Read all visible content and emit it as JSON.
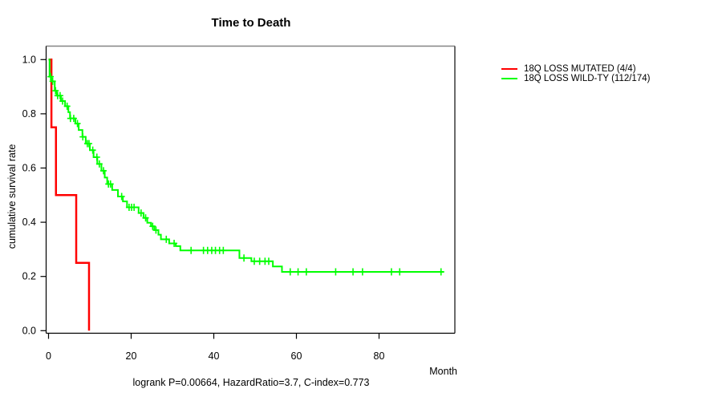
{
  "chart_data": {
    "type": "line",
    "subtype": "kaplan-meier-step",
    "title": "Time to Death",
    "xlabel": "Month",
    "ylabel": "cumulative survival rate",
    "annotation": "logrank P=0.00664, HazardRatio=3.7, C-index=0.773",
    "xlim": [
      0,
      98
    ],
    "ylim": [
      0.0,
      1.0
    ],
    "x_ticks": [
      {
        "value": 0,
        "label": "0"
      },
      {
        "value": 20,
        "label": "20"
      },
      {
        "value": 40,
        "label": "40"
      },
      {
        "value": 60,
        "label": "60"
      },
      {
        "value": 80,
        "label": "80"
      }
    ],
    "y_ticks": [
      {
        "value": 1.0,
        "label": "1.0"
      },
      {
        "value": 0.8,
        "label": "0.8"
      },
      {
        "value": 0.6,
        "label": "0.6"
      },
      {
        "value": 0.4,
        "label": "0.4"
      },
      {
        "value": 0.2,
        "label": "0.2"
      },
      {
        "value": 0.0,
        "label": "0.0"
      }
    ],
    "grid": false,
    "legend_position": "right-outside",
    "series": [
      {
        "name": "18Q LOSS MUTATED (4/4)",
        "color": "#ff0000",
        "line_width": 2.5,
        "end_month": 9.8,
        "steps": [
          [
            0,
            1.0
          ],
          [
            0.7,
            0.75
          ],
          [
            1.8,
            0.5
          ],
          [
            6.7,
            0.25
          ],
          [
            9.8,
            0.0
          ]
        ],
        "censors": []
      },
      {
        "name": "18Q LOSS WILD-TY (112/174)",
        "color": "#00ff00",
        "line_width": 2,
        "end_month": 95.7,
        "steps": [
          [
            0,
            1.0
          ],
          [
            0.25,
            0.937
          ],
          [
            0.8,
            0.92
          ],
          [
            1.5,
            0.885
          ],
          [
            2.0,
            0.867
          ],
          [
            3.0,
            0.847
          ],
          [
            4.0,
            0.828
          ],
          [
            4.8,
            0.806
          ],
          [
            5.2,
            0.783
          ],
          [
            6.5,
            0.764
          ],
          [
            7.3,
            0.74
          ],
          [
            8.2,
            0.715
          ],
          [
            9.0,
            0.69
          ],
          [
            10.0,
            0.666
          ],
          [
            10.9,
            0.64
          ],
          [
            11.8,
            0.615
          ],
          [
            12.8,
            0.59
          ],
          [
            13.6,
            0.565
          ],
          [
            14.2,
            0.541
          ],
          [
            15.4,
            0.519
          ],
          [
            16.8,
            0.495
          ],
          [
            18.0,
            0.477
          ],
          [
            19.0,
            0.455
          ],
          [
            21.8,
            0.434
          ],
          [
            23.0,
            0.416
          ],
          [
            23.9,
            0.398
          ],
          [
            24.8,
            0.385
          ],
          [
            25.6,
            0.371
          ],
          [
            26.6,
            0.354
          ],
          [
            27.2,
            0.337
          ],
          [
            29.2,
            0.322
          ],
          [
            30.8,
            0.312
          ],
          [
            31.9,
            0.296
          ],
          [
            46.2,
            0.268
          ],
          [
            49.1,
            0.256
          ],
          [
            54.3,
            0.237
          ],
          [
            56.5,
            0.217
          ]
        ],
        "censors": [
          [
            0.5,
            0.937
          ],
          [
            1.0,
            0.92
          ],
          [
            1.7,
            0.885
          ],
          [
            2.2,
            0.867
          ],
          [
            2.8,
            0.867
          ],
          [
            3.4,
            0.847
          ],
          [
            4.5,
            0.828
          ],
          [
            5.3,
            0.783
          ],
          [
            6.1,
            0.783
          ],
          [
            7.0,
            0.764
          ],
          [
            8.3,
            0.715
          ],
          [
            9.4,
            0.69
          ],
          [
            9.8,
            0.69
          ],
          [
            10.7,
            0.666
          ],
          [
            11.7,
            0.64
          ],
          [
            12.3,
            0.615
          ],
          [
            13.3,
            0.59
          ],
          [
            14.5,
            0.541
          ],
          [
            15.0,
            0.541
          ],
          [
            17.7,
            0.495
          ],
          [
            19.5,
            0.455
          ],
          [
            20.1,
            0.455
          ],
          [
            20.7,
            0.455
          ],
          [
            22.4,
            0.434
          ],
          [
            23.5,
            0.416
          ],
          [
            25.2,
            0.385
          ],
          [
            26.0,
            0.371
          ],
          [
            28.5,
            0.337
          ],
          [
            30.4,
            0.322
          ],
          [
            34.5,
            0.296
          ],
          [
            37.5,
            0.296
          ],
          [
            38.5,
            0.296
          ],
          [
            39.5,
            0.296
          ],
          [
            40.4,
            0.296
          ],
          [
            41.4,
            0.296
          ],
          [
            42.3,
            0.296
          ],
          [
            47.3,
            0.268
          ],
          [
            49.8,
            0.256
          ],
          [
            51.1,
            0.256
          ],
          [
            52.4,
            0.256
          ],
          [
            53.3,
            0.256
          ],
          [
            58.5,
            0.217
          ],
          [
            60.4,
            0.217
          ],
          [
            62.4,
            0.217
          ],
          [
            69.5,
            0.217
          ],
          [
            73.7,
            0.217
          ],
          [
            76.0,
            0.217
          ],
          [
            83.0,
            0.217
          ],
          [
            85.0,
            0.217
          ],
          [
            95.0,
            0.217
          ]
        ]
      }
    ],
    "box_colors": {
      "top": "#848484",
      "right": "#3a3a3a",
      "bottom": "#000000",
      "left": "#000000"
    },
    "tick_color": "#000000",
    "text_color": "#000000"
  }
}
